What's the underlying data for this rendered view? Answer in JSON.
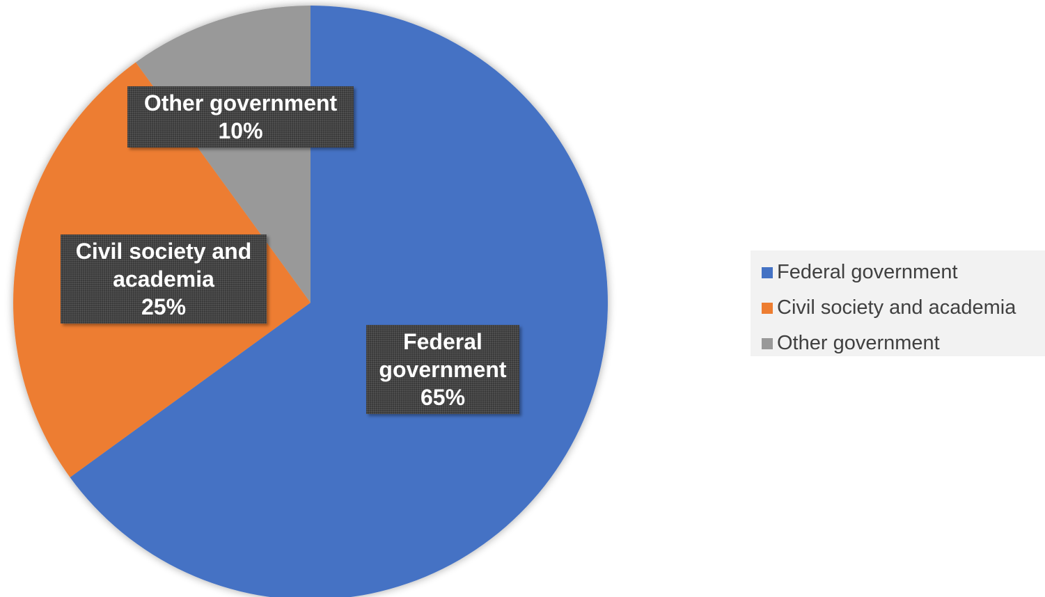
{
  "chart_data": {
    "type": "pie",
    "title": "",
    "start_angle_deg": 0,
    "direction": "clockwise",
    "slices": [
      {
        "label": "Federal government",
        "value": 65,
        "display": "65%",
        "color": "#4472C4"
      },
      {
        "label": "Civil society and academia",
        "value": 25,
        "display": "25%",
        "color": "#ED7D31"
      },
      {
        "label": "Other government",
        "value": 10,
        "display": "10%",
        "color": "#999999"
      }
    ],
    "data_labels": [
      {
        "lines": [
          "Federal",
          "government",
          "65%"
        ]
      },
      {
        "lines": [
          "Civil society and",
          "academia",
          "25%"
        ]
      },
      {
        "lines": [
          "Other government",
          "10%"
        ]
      }
    ],
    "legend": {
      "position": "right",
      "items": [
        "Federal government",
        "Civil society and academia",
        "Other government"
      ]
    }
  }
}
